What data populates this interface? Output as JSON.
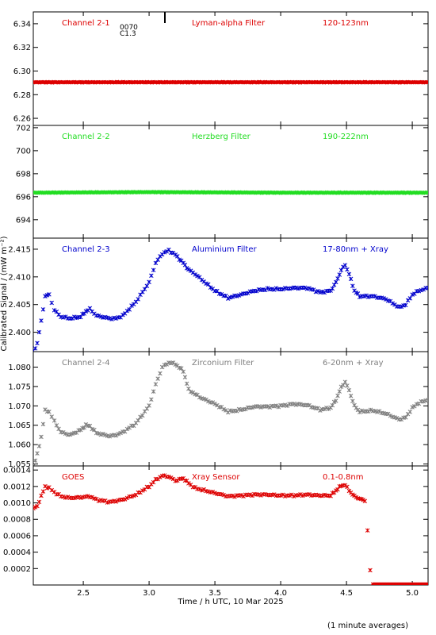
{
  "chart_data": {
    "type": "scatter",
    "x_label": "Time / h UTC, 10 Mar 2025",
    "y_label": "Calibrated Signal / (mW m⁻²)",
    "footnote": "(1 minute averages)",
    "x_range": [
      2.12,
      5.12
    ],
    "x_ticks": [
      "2.5",
      "3.0",
      "3.5",
      "4.0",
      "4.5",
      "5.0"
    ],
    "flare": {
      "time": 3.12,
      "label_top": "0070",
      "label_bottom": "C1.3"
    },
    "panels": [
      {
        "channel": "Channel 2-1",
        "filter": "Lyman-alpha Filter",
        "band": "120-123nm",
        "color": "#dd0000",
        "ylim": [
          6.254,
          6.35
        ],
        "y_ticks": [
          "6.26",
          "6.28",
          "6.30",
          "6.32",
          "6.34"
        ],
        "points": [
          [
            2.12,
            6.2905
          ],
          [
            5.12,
            6.2905
          ]
        ]
      },
      {
        "channel": "Channel 2-2",
        "filter": "Herzberg Filter",
        "band": "190-222nm",
        "color": "#22dd22",
        "ylim": [
          692.4,
          702.2
        ],
        "y_ticks": [
          "694",
          "696",
          "698",
          "700",
          "702"
        ],
        "points": [
          [
            2.12,
            696.35
          ],
          [
            3.0,
            696.4
          ],
          [
            4.0,
            696.35
          ],
          [
            5.12,
            696.35
          ]
        ]
      },
      {
        "channel": "Channel 2-3",
        "filter": "Aluminium Filter",
        "band": "17-80nm + Xray",
        "color": "#0000cc",
        "ylim": [
          2.3965,
          2.417
        ],
        "y_ticks": [
          "2.400",
          "2.405",
          "2.410",
          "2.415"
        ],
        "points": [
          [
            2.12,
            2.3965
          ],
          [
            2.15,
            2.398
          ],
          [
            2.18,
            2.402
          ],
          [
            2.21,
            2.4065
          ],
          [
            2.24,
            2.4068
          ],
          [
            2.28,
            2.404
          ],
          [
            2.33,
            2.4028
          ],
          [
            2.4,
            2.4025
          ],
          [
            2.48,
            2.4028
          ],
          [
            2.52,
            2.4038
          ],
          [
            2.55,
            2.4042
          ],
          [
            2.6,
            2.403
          ],
          [
            2.7,
            2.4025
          ],
          [
            2.75,
            2.4025
          ],
          [
            2.8,
            2.403
          ],
          [
            2.9,
            2.4055
          ],
          [
            3.0,
            2.409
          ],
          [
            3.05,
            2.4125
          ],
          [
            3.1,
            2.4142
          ],
          [
            3.15,
            2.4148
          ],
          [
            3.2,
            2.414
          ],
          [
            3.26,
            2.4125
          ],
          [
            3.3,
            2.4113
          ],
          [
            3.35,
            2.4105
          ],
          [
            3.4,
            2.4095
          ],
          [
            3.5,
            2.4075
          ],
          [
            3.6,
            2.4062
          ],
          [
            3.7,
            2.4068
          ],
          [
            3.8,
            2.4075
          ],
          [
            3.9,
            2.4078
          ],
          [
            4.0,
            2.4078
          ],
          [
            4.1,
            2.408
          ],
          [
            4.2,
            2.408
          ],
          [
            4.3,
            2.4072
          ],
          [
            4.38,
            2.4075
          ],
          [
            4.42,
            2.409
          ],
          [
            4.46,
            2.4112
          ],
          [
            4.49,
            2.4122
          ],
          [
            4.52,
            2.4105
          ],
          [
            4.56,
            2.4075
          ],
          [
            4.6,
            2.4065
          ],
          [
            4.7,
            2.4065
          ],
          [
            4.8,
            2.406
          ],
          [
            4.9,
            2.4045
          ],
          [
            4.95,
            2.405
          ],
          [
            5.0,
            2.4068
          ],
          [
            5.05,
            2.4075
          ],
          [
            5.12,
            2.408
          ]
        ]
      },
      {
        "channel": "Channel 2-4",
        "filter": "Zirconium Filter",
        "band": "6-20nm + Xray",
        "color": "#7f7f7f",
        "ylim": [
          1.0545,
          1.084
        ],
        "y_ticks": [
          "1.055",
          "1.060",
          "1.065",
          "1.070",
          "1.075",
          "1.080"
        ],
        "points": [
          [
            2.12,
            1.0545
          ],
          [
            2.15,
            1.0575
          ],
          [
            2.18,
            1.062
          ],
          [
            2.21,
            1.0688
          ],
          [
            2.24,
            1.0685
          ],
          [
            2.28,
            1.066
          ],
          [
            2.33,
            1.0632
          ],
          [
            2.4,
            1.0625
          ],
          [
            2.48,
            1.0638
          ],
          [
            2.52,
            1.065
          ],
          [
            2.55,
            1.0648
          ],
          [
            2.6,
            1.063
          ],
          [
            2.7,
            1.0622
          ],
          [
            2.75,
            1.0625
          ],
          [
            2.8,
            1.0632
          ],
          [
            2.9,
            1.0655
          ],
          [
            3.0,
            1.07
          ],
          [
            3.05,
            1.0755
          ],
          [
            3.1,
            1.08
          ],
          [
            3.15,
            1.0812
          ],
          [
            3.2,
            1.0808
          ],
          [
            3.26,
            1.079
          ],
          [
            3.3,
            1.0742
          ],
          [
            3.35,
            1.073
          ],
          [
            3.4,
            1.072
          ],
          [
            3.5,
            1.0705
          ],
          [
            3.6,
            1.0685
          ],
          [
            3.7,
            1.069
          ],
          [
            3.8,
            1.0698
          ],
          [
            3.9,
            1.0698
          ],
          [
            4.0,
            1.07
          ],
          [
            4.1,
            1.0705
          ],
          [
            4.2,
            1.0702
          ],
          [
            4.3,
            1.069
          ],
          [
            4.38,
            1.0695
          ],
          [
            4.42,
            1.0715
          ],
          [
            4.46,
            1.0748
          ],
          [
            4.49,
            1.0762
          ],
          [
            4.52,
            1.074
          ],
          [
            4.56,
            1.07
          ],
          [
            4.6,
            1.0685
          ],
          [
            4.7,
            1.0688
          ],
          [
            4.8,
            1.068
          ],
          [
            4.9,
            1.0665
          ],
          [
            4.95,
            1.067
          ],
          [
            5.0,
            1.0695
          ],
          [
            5.05,
            1.0708
          ],
          [
            5.12,
            1.0715
          ]
        ]
      },
      {
        "channel": "GOES",
        "filter": "Xray Sensor",
        "band": "0.1-0.8nm",
        "color": "#dd0000",
        "ylim": [
          0.0,
          0.00145
        ],
        "y_ticks": [
          "0.0002",
          "0.0004",
          "0.0006",
          "0.0008",
          "0.0010",
          "0.0012",
          "0.0014"
        ],
        "points": [
          [
            2.12,
            0.00093
          ],
          [
            2.15,
            0.00096
          ],
          [
            2.18,
            0.00108
          ],
          [
            2.21,
            0.0012
          ],
          [
            2.24,
            0.00118
          ],
          [
            2.28,
            0.00113
          ],
          [
            2.33,
            0.00108
          ],
          [
            2.4,
            0.00106
          ],
          [
            2.5,
            0.00107
          ],
          [
            2.55,
            0.00108
          ],
          [
            2.6,
            0.00104
          ],
          [
            2.7,
            0.00101
          ],
          [
            2.8,
            0.00104
          ],
          [
            2.9,
            0.0011
          ],
          [
            3.0,
            0.0012
          ],
          [
            3.05,
            0.00128
          ],
          [
            3.1,
            0.00133
          ],
          [
            3.15,
            0.00132
          ],
          [
            3.2,
            0.00127
          ],
          [
            3.26,
            0.0013
          ],
          [
            3.3,
            0.00124
          ],
          [
            3.35,
            0.00118
          ],
          [
            3.5,
            0.00112
          ],
          [
            3.6,
            0.00108
          ],
          [
            3.7,
            0.00109
          ],
          [
            3.8,
            0.0011
          ],
          [
            3.9,
            0.0011
          ],
          [
            4.0,
            0.00109
          ],
          [
            4.1,
            0.00109
          ],
          [
            4.2,
            0.0011
          ],
          [
            4.3,
            0.00109
          ],
          [
            4.38,
            0.00109
          ],
          [
            4.42,
            0.00115
          ],
          [
            4.46,
            0.00121
          ],
          [
            4.49,
            0.00122
          ],
          [
            4.52,
            0.00115
          ],
          [
            4.56,
            0.00108
          ],
          [
            4.6,
            0.00105
          ],
          [
            4.64,
            0.00103
          ],
          [
            4.66,
            0.00066
          ],
          [
            4.68,
            0.00018
          ]
        ]
      }
    ],
    "goes_floor": {
      "from": 4.7,
      "to": 5.12,
      "value": 0.0
    }
  }
}
